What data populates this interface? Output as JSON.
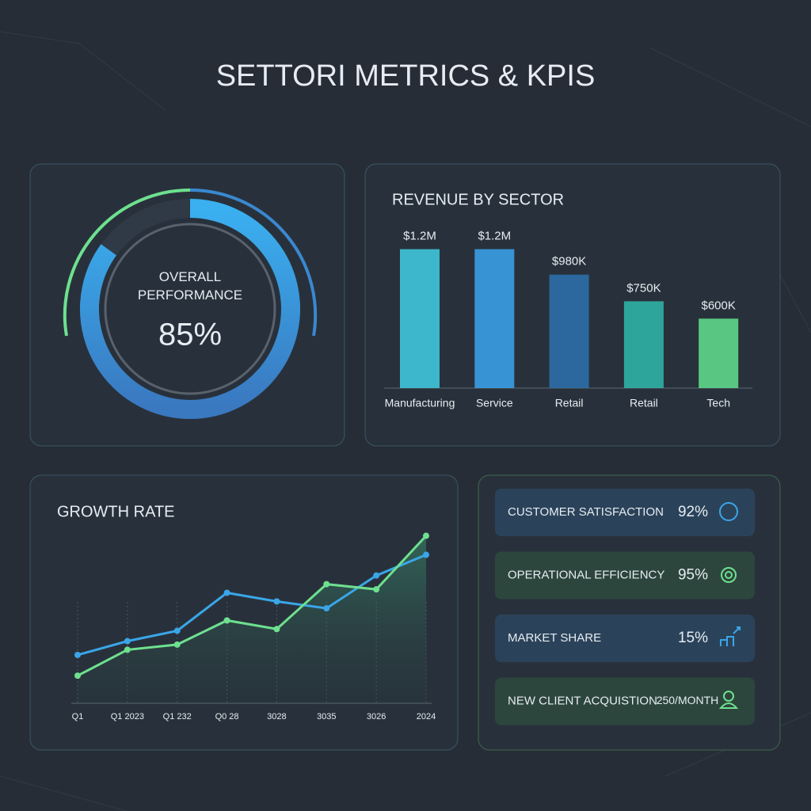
{
  "title": "SETTORI METRICS & KPIS",
  "chart_data": [
    {
      "type": "gauge",
      "label": "OVERALL PERFORMANCE",
      "value": 85,
      "value_label": "85%",
      "range": [
        0,
        100
      ]
    },
    {
      "type": "bar",
      "title": "REVENUE BY SECTOR",
      "categories": [
        "Manufacturing",
        "Service",
        "Retail",
        "Retail",
        "Tech"
      ],
      "values": [
        1200000,
        1200000,
        980000,
        750000,
        600000
      ],
      "value_labels": [
        "$1.2M",
        "$1.2M",
        "$980K",
        "$750K",
        "$600K"
      ],
      "colors": [
        "#3fc6dc",
        "#3a9fe6",
        "#2c6fa8",
        "#2fb3a6",
        "#5ed88a"
      ],
      "ylim": [
        0,
        1300000
      ]
    },
    {
      "type": "line",
      "title": "GROWTH RATE",
      "categories": [
        "Q1",
        "Q1 2023",
        "Q1 232",
        "Q0 28",
        "3028",
        "3035",
        "3026",
        "2024"
      ],
      "series": [
        {
          "color": "#3aa6e8",
          "values": [
            28,
            36,
            42,
            64,
            59,
            55,
            74,
            86
          ]
        },
        {
          "color": "#6ee08f",
          "values": [
            16,
            31,
            34,
            48,
            43,
            69,
            66,
            97
          ]
        }
      ],
      "ylim": [
        0,
        100
      ]
    }
  ],
  "kpis": [
    {
      "label": "CUSTOMER SATISFACTION",
      "value": "92%"
    },
    {
      "label": "OPERATIONAL EFFICIENCY",
      "value": "95%"
    },
    {
      "label": "MARKET SHARE",
      "value": "15%"
    },
    {
      "label": "NEW CLIENT ACQUISTION",
      "value": "250/MONTH"
    }
  ]
}
